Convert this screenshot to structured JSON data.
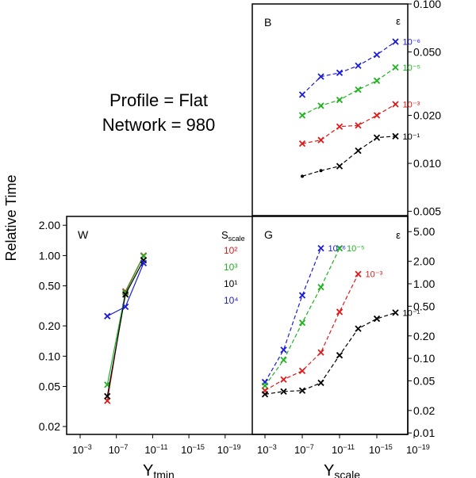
{
  "annotation": {
    "line1": "Profile = Flat",
    "line2": "Network = 980"
  },
  "y_axis_title": "Relative Time",
  "chart_data": [
    {
      "id": "B",
      "type": "line",
      "title": "B",
      "yscale": "log",
      "ylim": [
        0.005,
        0.1
      ],
      "x_exponents": [
        -3,
        -7,
        -11,
        -15,
        -19
      ],
      "xlim_exponent": [
        -1,
        -21
      ],
      "y_ticks": [
        "0.005",
        "0.010",
        "0.020",
        "0.050",
        "0.100"
      ],
      "y_tick_values": [
        0.005,
        0.01,
        0.02,
        0.05,
        0.1
      ],
      "legend_title": "ε",
      "series": [
        {
          "name": "10⁻⁶",
          "eps_exp": -6,
          "color": "#1c1cd6",
          "marker": "x",
          "x_exp": [
            -7,
            -9,
            -11,
            -13,
            -15,
            -17
          ],
          "values": [
            0.027,
            0.035,
            0.037,
            0.041,
            0.048,
            0.058
          ]
        },
        {
          "name": "10⁻⁵",
          "eps_exp": -5,
          "color": "#1fb31f",
          "marker": "x",
          "x_exp": [
            -7,
            -9,
            -11,
            -13,
            -15,
            -17
          ],
          "values": [
            0.02,
            0.023,
            0.025,
            0.029,
            0.033,
            0.04
          ]
        },
        {
          "name": "10⁻³",
          "eps_exp": -3,
          "color": "#e01a1a",
          "marker": "x",
          "x_exp": [
            -7,
            -9,
            -11,
            -13,
            -15,
            -17
          ],
          "values": [
            0.0133,
            0.014,
            0.017,
            0.0173,
            0.02,
            0.0235
          ]
        },
        {
          "name": "10⁻¹",
          "eps_exp": -1,
          "color": "#000000",
          "marker": "x",
          "x_exp": [
            -7,
            -9,
            -11,
            -13,
            -15,
            -17
          ],
          "values": [
            0.0083,
            0.009,
            0.0096,
            0.012,
            0.0145,
            0.0148
          ],
          "dot_points": [
            0,
            1
          ]
        }
      ]
    },
    {
      "id": "W",
      "type": "line",
      "title": "W",
      "yscale": "log",
      "ylim": [
        0.02,
        2.0
      ],
      "x_exponents": [
        -3,
        -7,
        -11,
        -15,
        -19
      ],
      "xlim_exponent": [
        -1,
        -21
      ],
      "xlabel": "Y",
      "xlabel_sub": "tmin",
      "y_ticks": [
        "0.02",
        "0.05",
        "0.10",
        "0.20",
        "0.50",
        "1.00",
        "2.00"
      ],
      "y_tick_values": [
        0.02,
        0.05,
        0.1,
        0.2,
        0.5,
        1.0,
        2.0
      ],
      "legend_title": "S",
      "legend_title_sub": "scale",
      "series": [
        {
          "name": "10²",
          "color": "#e01a1a",
          "marker": "x",
          "solid": true,
          "x_exp": [
            -6,
            -8,
            -10
          ],
          "values": [
            0.036,
            0.44,
            1.0
          ]
        },
        {
          "name": "10³",
          "color": "#1fb31f",
          "marker": "x",
          "solid": true,
          "x_exp": [
            -6,
            -8,
            -10
          ],
          "values": [
            0.052,
            0.43,
            0.99
          ]
        },
        {
          "name": "10¹",
          "color": "#000000",
          "marker": "x",
          "solid": true,
          "x_exp": [
            -6,
            -8,
            -10
          ],
          "values": [
            0.04,
            0.41,
            0.9
          ]
        },
        {
          "name": "10⁴",
          "color": "#1c1cd6",
          "marker": "x",
          "solid": true,
          "x_exp": [
            -6,
            -8,
            -10
          ],
          "values": [
            0.25,
            0.31,
            0.84
          ]
        }
      ]
    },
    {
      "id": "G",
      "type": "line",
      "title": "G",
      "yscale": "log",
      "ylim": [
        0.01,
        7.0
      ],
      "x_exponents": [
        -3,
        -7,
        -11,
        -15,
        -19
      ],
      "xlim_exponent": [
        -1,
        -21
      ],
      "xlabel": "Y",
      "xlabel_sub": "scale",
      "y_ticks": [
        "0.01",
        "0.02",
        "0.05",
        "0.10",
        "0.20",
        "0.50",
        "1.00",
        "2.00",
        "5.00"
      ],
      "y_tick_values": [
        0.01,
        0.02,
        0.05,
        0.1,
        0.2,
        0.5,
        1.0,
        2.0,
        5.0
      ],
      "legend_title": "ε",
      "series": [
        {
          "name": "10⁻⁶",
          "color": "#1c1cd6",
          "marker": "x",
          "x_exp": [
            -3,
            -5,
            -7,
            -9
          ],
          "values": [
            0.048,
            0.13,
            0.7,
            3.0
          ]
        },
        {
          "name": "10⁻⁵",
          "color": "#1fb31f",
          "marker": "x",
          "x_exp": [
            -3,
            -5,
            -7,
            -9,
            -11
          ],
          "values": [
            0.043,
            0.095,
            0.3,
            0.9,
            3.0
          ]
        },
        {
          "name": "10⁻³",
          "color": "#e01a1a",
          "marker": "x",
          "x_exp": [
            -3,
            -5,
            -7,
            -9,
            -11,
            -13
          ],
          "values": [
            0.037,
            0.052,
            0.068,
            0.12,
            0.42,
            1.35
          ]
        },
        {
          "name": "10⁻¹",
          "color": "#000000",
          "marker": "x",
          "x_exp": [
            -3,
            -5,
            -7,
            -9,
            -11,
            -13,
            -15,
            -17
          ],
          "values": [
            0.033,
            0.036,
            0.037,
            0.047,
            0.11,
            0.25,
            0.34,
            0.41
          ]
        }
      ]
    }
  ]
}
